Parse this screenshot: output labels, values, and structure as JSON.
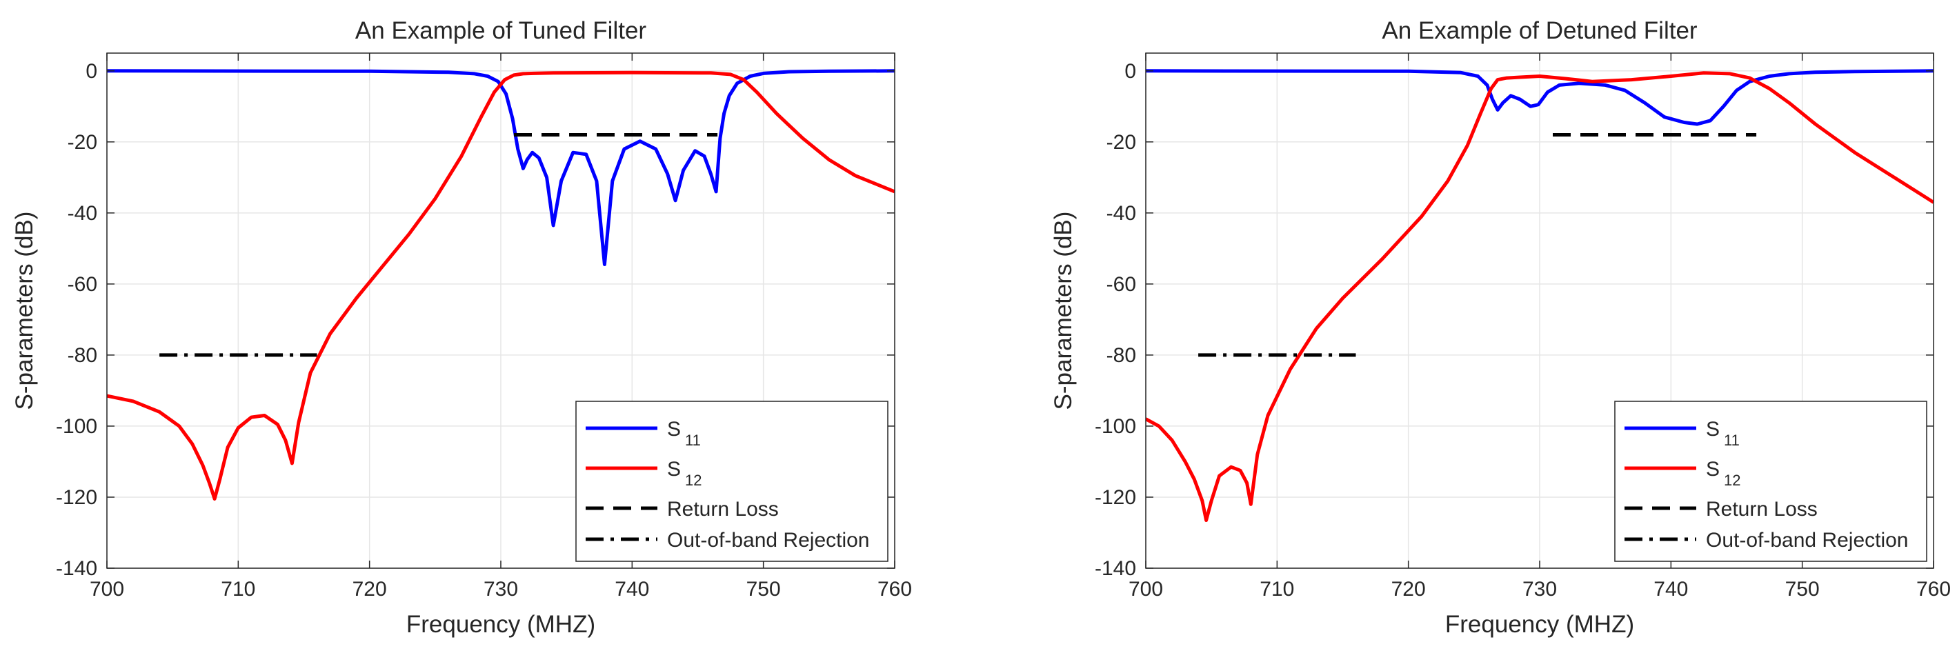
{
  "colors": {
    "s11": "#0000ff",
    "s12": "#ff0000",
    "threshold": "#000000",
    "grid": "#e6e6e6",
    "axis": "#262626"
  },
  "chart_data": [
    {
      "type": "line",
      "title": "An Example of Tuned Filter",
      "xlabel": "Frequency (MHZ)",
      "ylabel": "S-parameters (dB)",
      "xlim": [
        700,
        760
      ],
      "ylim": [
        -140,
        5
      ],
      "xticks": [
        700,
        710,
        720,
        730,
        740,
        750,
        760
      ],
      "yticks": [
        0,
        -20,
        -40,
        -60,
        -80,
        -100,
        -120,
        -140
      ],
      "grid": true,
      "legend_position": "bottom-right",
      "legend": [
        {
          "name": "S",
          "sub": "11",
          "style": "solid",
          "color": "#0000ff"
        },
        {
          "name": "S",
          "sub": "12",
          "style": "solid",
          "color": "#ff0000"
        },
        {
          "name": "Return Loss",
          "style": "dashed",
          "color": "#000000"
        },
        {
          "name": "Out-of-band Rejection",
          "style": "dashdot",
          "color": "#000000"
        }
      ],
      "series": [
        {
          "name": "S11",
          "x": [
            700,
            720,
            726,
            728,
            729,
            729.8,
            730.4,
            730.9,
            731.3,
            731.7,
            732.0,
            732.4,
            732.9,
            733.5,
            734.0,
            734.6,
            735.5,
            736.5,
            737.3,
            737.9,
            738.5,
            739.4,
            740.6,
            741.8,
            742.7,
            743.3,
            743.9,
            744.8,
            745.5,
            746.0,
            746.4,
            746.7,
            747.0,
            747.4,
            748.0,
            749.0,
            750.0,
            752.0,
            755.0,
            760.0
          ],
          "values": [
            0,
            -0.1,
            -0.4,
            -0.8,
            -1.5,
            -3.0,
            -6.5,
            -13.5,
            -22.0,
            -27.5,
            -25.0,
            -23.0,
            -24.5,
            -30.0,
            -43.5,
            -31.0,
            -23.0,
            -23.5,
            -31.0,
            -54.5,
            -31.0,
            -22.0,
            -19.8,
            -22.0,
            -29.0,
            -36.5,
            -28.0,
            -22.5,
            -24.0,
            -29.0,
            -34.0,
            -19.0,
            -12.0,
            -7.0,
            -3.5,
            -1.5,
            -0.7,
            -0.25,
            -0.1,
            0
          ]
        },
        {
          "name": "S12",
          "x": [
            700,
            702,
            704,
            705.5,
            706.5,
            707.3,
            707.8,
            708.2,
            708.6,
            709.2,
            710.0,
            711.0,
            712.0,
            713.0,
            713.6,
            714.1,
            714.6,
            715.5,
            717.0,
            719.0,
            721.0,
            723.0,
            725.0,
            727.0,
            728.5,
            729.5,
            730.3,
            731.0,
            731.7,
            732.5,
            734.0,
            740.0,
            746.0,
            747.5,
            748.5,
            749.5,
            751.0,
            753.0,
            755.0,
            757.0,
            760.0
          ],
          "values": [
            -91.5,
            -93.0,
            -96.0,
            -100.0,
            -105.0,
            -111.0,
            -116.0,
            -120.5,
            -115.0,
            -106.0,
            -100.5,
            -97.5,
            -97.0,
            -99.5,
            -104.0,
            -110.5,
            -99.0,
            -85.0,
            -74.0,
            -64.0,
            -55.0,
            -46.0,
            -36.0,
            -24.0,
            -13.0,
            -6.0,
            -2.5,
            -1.2,
            -0.8,
            -0.7,
            -0.6,
            -0.5,
            -0.6,
            -1.0,
            -2.5,
            -6.0,
            -12.0,
            -19.0,
            -25.0,
            -29.5,
            -34.0
          ]
        },
        {
          "name": "Return Loss",
          "x": [
            731,
            746.5
          ],
          "values": [
            -18,
            -18
          ]
        },
        {
          "name": "Out-of-band Rejection",
          "x": [
            704,
            716
          ],
          "values": [
            -80,
            -80
          ]
        }
      ]
    },
    {
      "type": "line",
      "title": "An Example of Detuned Filter",
      "xlabel": "Frequency (MHZ)",
      "ylabel": "S-parameters (dB)",
      "xlim": [
        700,
        760
      ],
      "ylim": [
        -140,
        5
      ],
      "xticks": [
        700,
        710,
        720,
        730,
        740,
        750,
        760
      ],
      "yticks": [
        0,
        -20,
        -40,
        -60,
        -80,
        -100,
        -120,
        -140
      ],
      "grid": true,
      "legend_position": "bottom-right",
      "legend": [
        {
          "name": "S",
          "sub": "11",
          "style": "solid",
          "color": "#0000ff"
        },
        {
          "name": "S",
          "sub": "12",
          "style": "solid",
          "color": "#ff0000"
        },
        {
          "name": "Return Loss",
          "style": "dashed",
          "color": "#000000"
        },
        {
          "name": "Out-of-band Rejection",
          "style": "dashdot",
          "color": "#000000"
        }
      ],
      "series": [
        {
          "name": "S11",
          "x": [
            700,
            720,
            724,
            725.3,
            726.0,
            726.4,
            726.8,
            727.2,
            727.8,
            728.5,
            729.3,
            729.9,
            730.6,
            731.5,
            733.0,
            735.0,
            736.5,
            738.0,
            739.5,
            741.0,
            742.0,
            743.0,
            744.0,
            745.0,
            746.0,
            747.5,
            749.0,
            751.0,
            754.0,
            760.0
          ],
          "values": [
            0,
            -0.1,
            -0.5,
            -1.5,
            -4.0,
            -8.0,
            -11.0,
            -9.0,
            -7.0,
            -8.0,
            -10.0,
            -9.5,
            -6.0,
            -4.0,
            -3.5,
            -4.0,
            -5.5,
            -9.0,
            -13.0,
            -14.5,
            -15.0,
            -14.0,
            -10.0,
            -5.5,
            -3.0,
            -1.5,
            -0.8,
            -0.4,
            -0.2,
            0
          ]
        },
        {
          "name": "S12",
          "x": [
            700,
            701,
            702,
            703,
            703.7,
            704.3,
            704.6,
            705.0,
            705.6,
            706.5,
            707.2,
            707.7,
            708.0,
            708.5,
            709.3,
            711.0,
            713.0,
            715.0,
            718.0,
            721.0,
            723.0,
            724.5,
            725.5,
            726.3,
            726.8,
            727.5,
            728.5,
            730.0,
            732.0,
            734.0,
            737.0,
            740.0,
            742.5,
            744.5,
            746.0,
            747.5,
            749.0,
            751.0,
            754.0,
            757.0,
            760.0
          ],
          "values": [
            -98.0,
            -100.0,
            -104.0,
            -110.0,
            -115.0,
            -121.0,
            -126.5,
            -121.0,
            -114.0,
            -111.5,
            -112.5,
            -116.0,
            -122.0,
            -108.0,
            -97.0,
            -84.0,
            -72.5,
            -64.0,
            -53.0,
            -41.0,
            -31.0,
            -21.0,
            -12.0,
            -5.0,
            -2.5,
            -2.0,
            -1.8,
            -1.5,
            -2.2,
            -3.0,
            -2.5,
            -1.5,
            -0.6,
            -0.8,
            -2.0,
            -5.0,
            -9.0,
            -15.0,
            -23.0,
            -30.0,
            -37.0
          ]
        },
        {
          "name": "Return Loss",
          "x": [
            731,
            746.5
          ],
          "values": [
            -18,
            -18
          ]
        },
        {
          "name": "Out-of-band Rejection",
          "x": [
            704,
            716
          ],
          "values": [
            -80,
            -80
          ]
        }
      ]
    }
  ]
}
